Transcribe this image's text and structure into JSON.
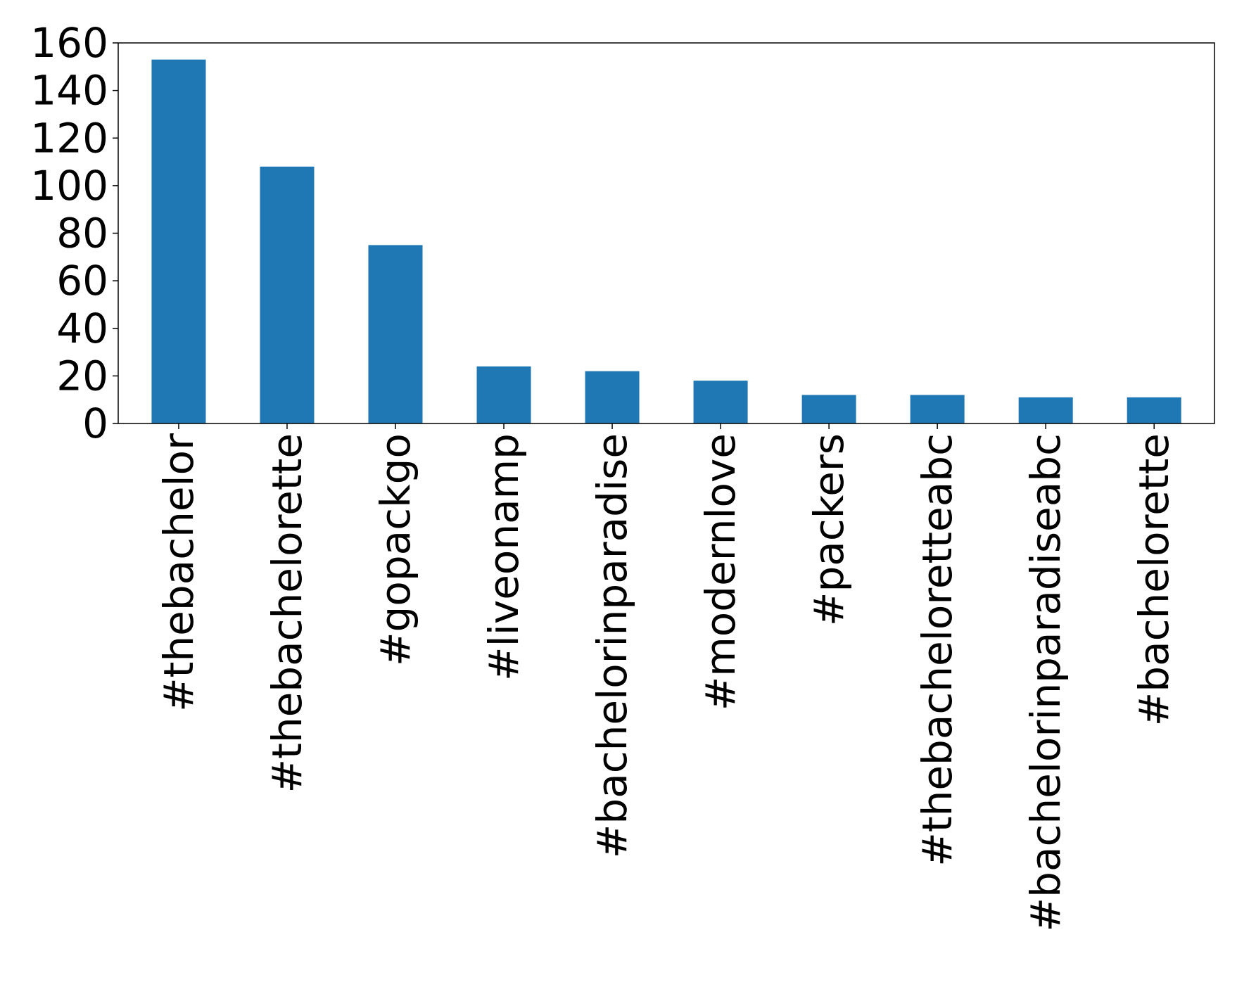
{
  "chart_data": {
    "type": "bar",
    "categories": [
      "#thebachelor",
      "#thebachelorette",
      "#gopackgo",
      "#liveonamp",
      "#bachelorinparadise",
      "#modernlove",
      "#packers",
      "#thebacheloretteabc",
      "#bachelorinparadiseabc",
      "#bachelorette"
    ],
    "values": [
      153,
      108,
      75,
      24,
      22,
      18,
      12,
      12,
      11,
      11
    ],
    "ylim": [
      0,
      160
    ],
    "yticks": [
      0,
      20,
      40,
      60,
      80,
      100,
      120,
      140,
      160
    ],
    "ytick_labels": [
      "0",
      "20",
      "40",
      "60",
      "80",
      "100",
      "120",
      "140",
      "160"
    ],
    "title": "",
    "xlabel": "",
    "ylabel": "",
    "grid": false,
    "legend": "none",
    "bar_color": "#1f77b4"
  }
}
